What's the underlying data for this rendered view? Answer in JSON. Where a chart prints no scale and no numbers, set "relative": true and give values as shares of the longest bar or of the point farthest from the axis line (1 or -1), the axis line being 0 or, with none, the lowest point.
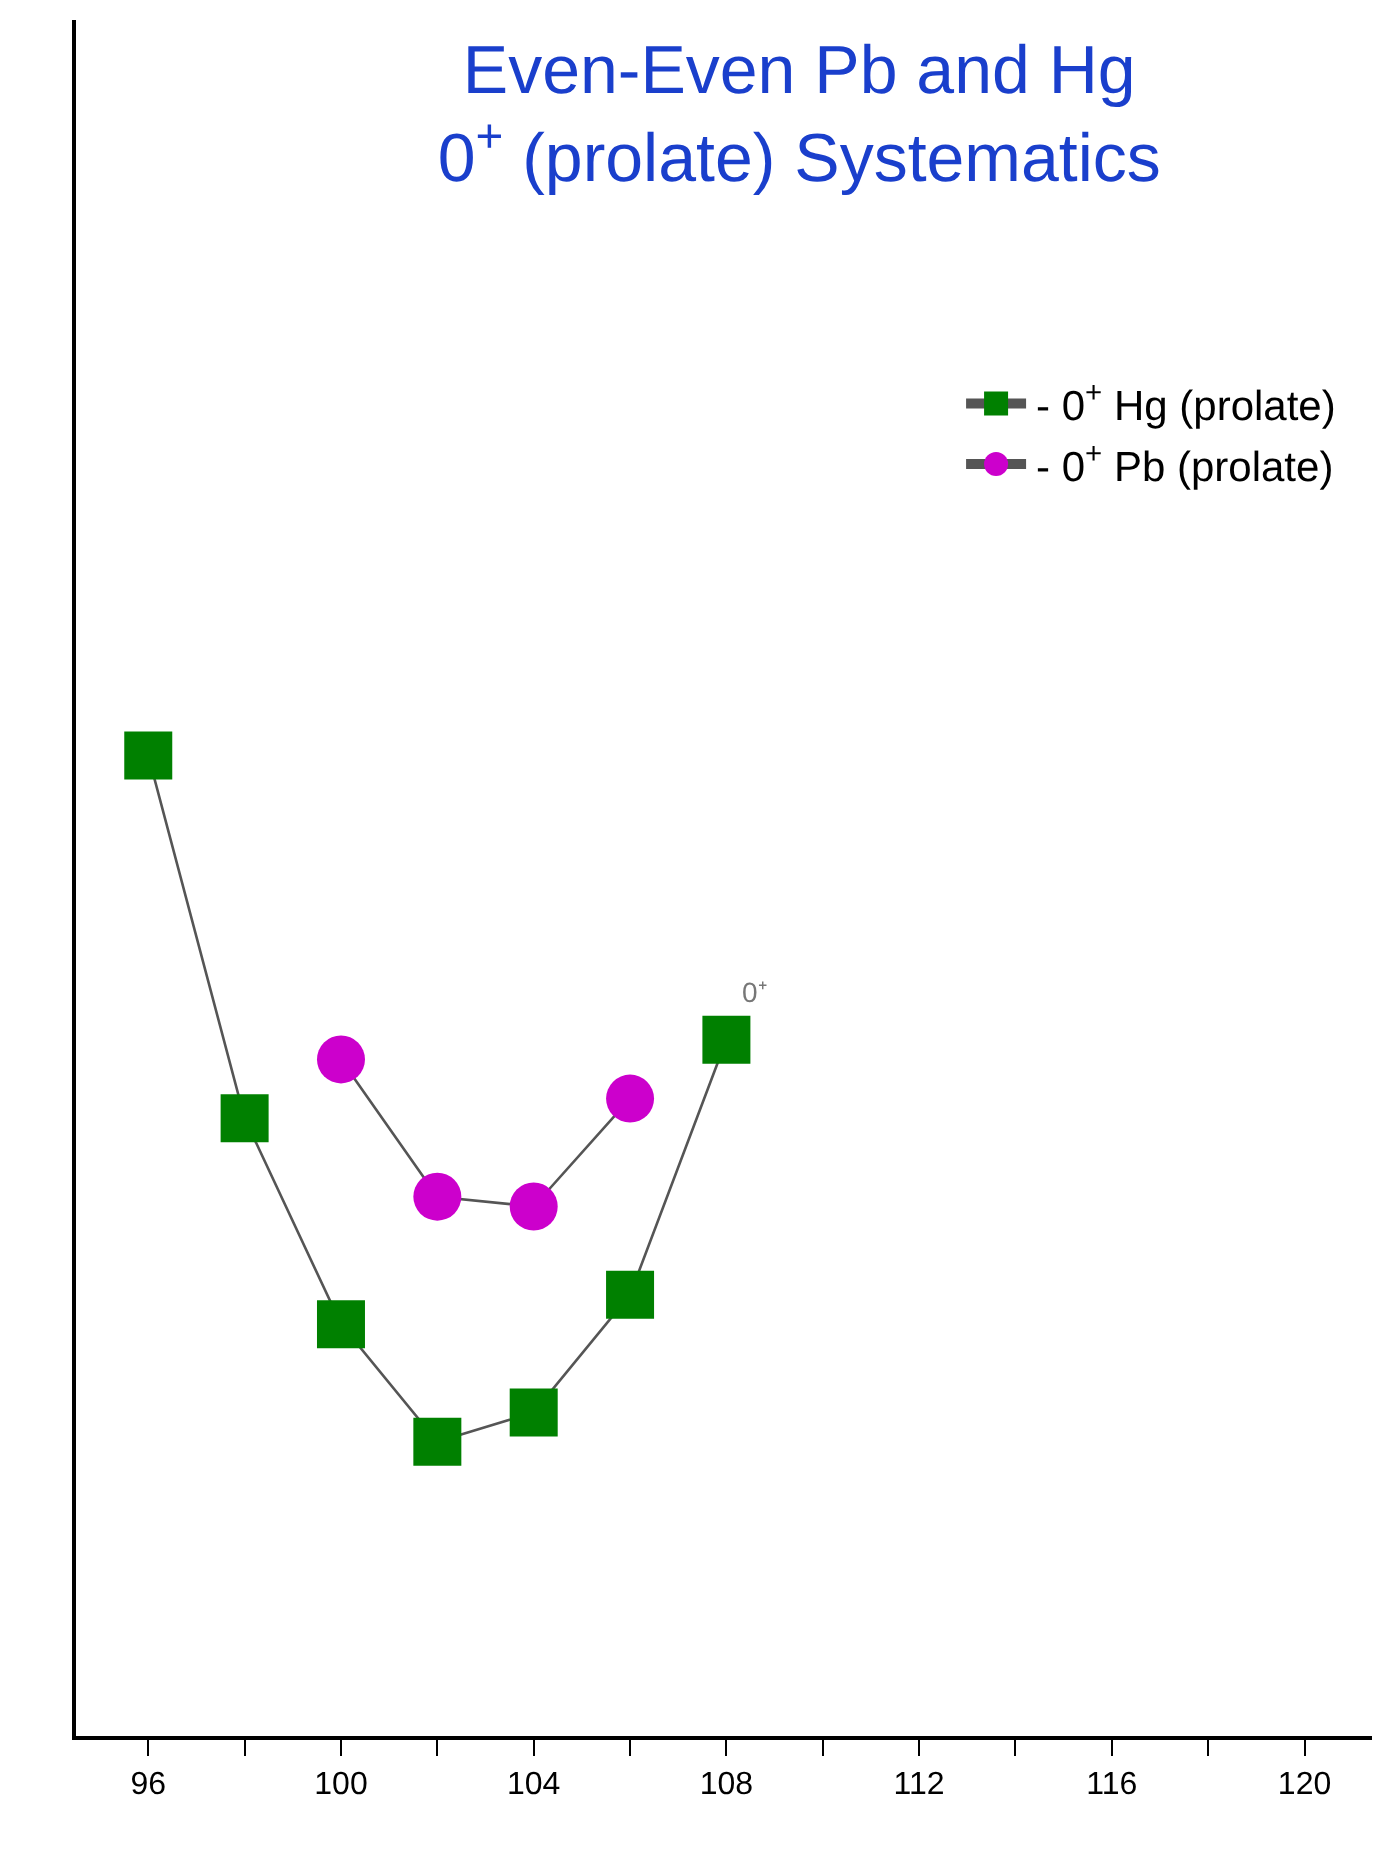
{
  "chart_data": {
    "type": "line",
    "title": "Even-Even Pb and Hg\n0$^{+}$ (prolate) Systematics",
    "relative": true,
    "series": [
      {
        "name": "- 0$^{+}$ Hg (prolate)",
        "color": "#008000",
        "marker": "square",
        "x": [
          96,
          98,
          100,
          102,
          104,
          106,
          108
        ],
        "values": [
          1,
          0.63,
          0.42,
          0.3,
          0.33,
          0.45,
          0.71
        ]
      },
      {
        "name": "- 0$^{+}$ Pb (prolate)",
        "color": "#cc00cc",
        "marker": "circle",
        "x": [
          100,
          102,
          104,
          106
        ],
        "values": [
          0.69,
          0.55,
          0.54,
          0.65
        ]
      }
    ],
    "annotations": [
      {
        "text": "0⁺",
        "x": 108,
        "y": 0.71
      }
    ],
    "xlim": [
      94.5,
      121.4
    ],
    "xticks": [
      96,
      {
        "value": 98,
        "label": null
      },
      100,
      {
        "value": 102,
        "label": null
      },
      104,
      {
        "value": 106,
        "label": null
      },
      108,
      {
        "value": 110,
        "label": null
      },
      112,
      {
        "value": 114,
        "label": null
      },
      116,
      {
        "value": 118,
        "label": null
      },
      120
    ],
    "legend": "top right"
  }
}
